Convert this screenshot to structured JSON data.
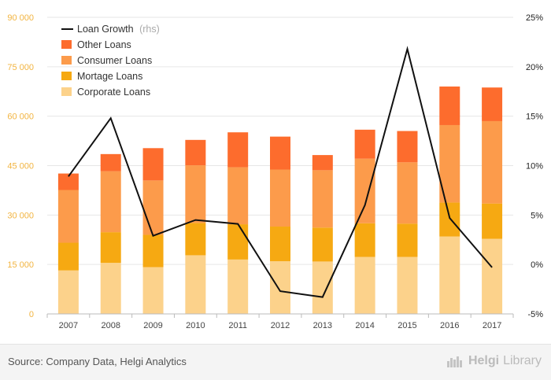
{
  "chart_data": {
    "type": "bar",
    "stacked": true,
    "categories": [
      "2007",
      "2008",
      "2009",
      "2010",
      "2011",
      "2012",
      "2013",
      "2014",
      "2015",
      "2016",
      "2017"
    ],
    "series": [
      {
        "name": "Corporate Loans",
        "color": "#fcd28b",
        "values": [
          13200,
          15500,
          14200,
          17800,
          16500,
          16000,
          15900,
          17300,
          17300,
          23500,
          22800
        ]
      },
      {
        "name": "Mortage Loans",
        "color": "#f6a912",
        "values": [
          8400,
          9300,
          9800,
          9800,
          10700,
          10500,
          10300,
          10200,
          10100,
          10300,
          10700
        ]
      },
      {
        "name": "Consumer Loans",
        "color": "#fc9b4b",
        "values": [
          16000,
          18500,
          16500,
          17500,
          17300,
          17300,
          17400,
          19600,
          18600,
          23500,
          25000
        ]
      },
      {
        "name": "Other Loans",
        "color": "#fd6c2d",
        "values": [
          5000,
          5200,
          9800,
          7700,
          10600,
          10000,
          4600,
          8800,
          9500,
          11700,
          10200
        ]
      }
    ],
    "line_series": {
      "name": "Loan Growth",
      "axis_note": "(rhs)",
      "color": "#111111",
      "values": [
        8.9,
        14.8,
        2.9,
        4.5,
        4.1,
        -2.7,
        -3.3,
        6.0,
        21.8,
        4.7,
        -0.3
      ]
    },
    "ylim_left": [
      0,
      90000
    ],
    "yticks_left": [
      "0",
      "15 000",
      "30 000",
      "45 000",
      "60 000",
      "75 000",
      "90 000"
    ],
    "ylim_right": [
      -5,
      25
    ],
    "yticks_right": [
      "-5%",
      "0%",
      "5%",
      "10%",
      "15%",
      "20%",
      "25%"
    ],
    "legend_position": "top-left",
    "grid": "horizontal"
  },
  "footer": {
    "source": "Source: Company Data, Helgi Analytics",
    "brand_prefix": "Helgi",
    "brand_suffix": "Library"
  },
  "colors": {
    "left_axis_text": "#f2b440",
    "grid": "#e6e6e6",
    "axis": "#bbbbbb"
  }
}
